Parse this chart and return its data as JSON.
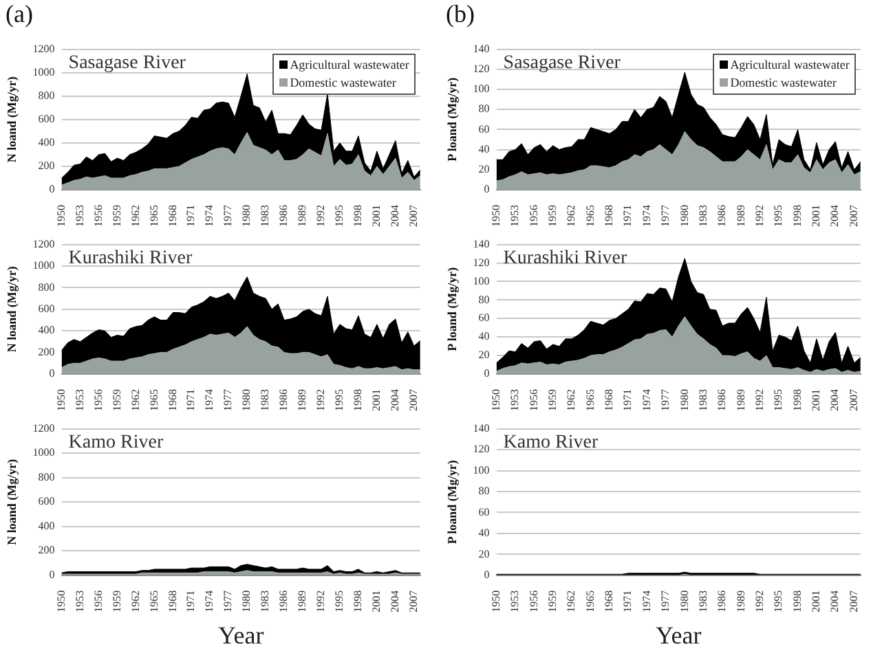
{
  "chart_data": [
    {
      "type": "area",
      "title": "Sasagase River",
      "annotations": [
        "(a)"
      ],
      "ylabel": "N loand (Mg/yr)",
      "stacked": true,
      "ylim": [
        0,
        1200
      ],
      "yticks": [
        0,
        200,
        400,
        600,
        800,
        1000,
        1200
      ],
      "grid": "y",
      "legend": "top right",
      "categories": [
        "1950",
        null,
        null,
        "1953",
        null,
        null,
        "1956",
        null,
        null,
        "1959",
        null,
        null,
        "1962",
        null,
        null,
        "1965",
        null,
        null,
        "1968",
        null,
        null,
        "1971",
        null,
        null,
        "1974",
        null,
        null,
        "1977",
        null,
        null,
        "1980",
        null,
        null,
        "1983",
        null,
        null,
        "1986",
        null,
        null,
        "1989",
        null,
        null,
        "1992",
        null,
        null,
        "1995",
        null,
        null,
        "1998",
        null,
        null,
        "2001",
        null,
        null,
        "2004",
        null,
        null,
        "2007",
        null
      ],
      "series": [
        {
          "name": "Domestic wastewater",
          "color": "#98a29e",
          "values": [
            40,
            60,
            80,
            90,
            110,
            100,
            110,
            120,
            100,
            100,
            100,
            120,
            130,
            150,
            160,
            180,
            180,
            180,
            190,
            200,
            230,
            260,
            280,
            300,
            330,
            350,
            360,
            350,
            300,
            400,
            490,
            380,
            360,
            340,
            300,
            340,
            250,
            250,
            260,
            300,
            350,
            320,
            290,
            480,
            200,
            260,
            210,
            220,
            300,
            160,
            120,
            200,
            130,
            200,
            270,
            100,
            150,
            80,
            120
          ]
        },
        {
          "name": "Agricultural wastewater",
          "color": "#000000",
          "values": [
            60,
            90,
            130,
            130,
            170,
            150,
            190,
            190,
            140,
            170,
            150,
            180,
            190,
            200,
            230,
            280,
            270,
            260,
            290,
            300,
            320,
            360,
            330,
            380,
            360,
            390,
            390,
            390,
            320,
            400,
            500,
            340,
            340,
            240,
            380,
            140,
            230,
            220,
            290,
            340,
            210,
            200,
            220,
            340,
            130,
            140,
            120,
            110,
            160,
            70,
            40,
            130,
            50,
            100,
            150,
            40,
            100,
            30,
            50
          ]
        }
      ]
    },
    {
      "type": "area",
      "title": "Sasagase River",
      "annotations": [
        "(b)"
      ],
      "ylabel": "P loand (Mg/yr)",
      "stacked": true,
      "ylim": [
        0,
        140
      ],
      "yticks": [
        0,
        20,
        40,
        60,
        80,
        100,
        120,
        140
      ],
      "grid": "y",
      "legend": "top right",
      "categories": [
        "1950",
        null,
        null,
        "1953",
        null,
        null,
        "1956",
        null,
        null,
        "1959",
        null,
        null,
        "1962",
        null,
        null,
        "1965",
        null,
        null,
        "1968",
        null,
        null,
        "1971",
        null,
        null,
        "1974",
        null,
        null,
        "1977",
        null,
        null,
        "1980",
        null,
        null,
        "1983",
        null,
        null,
        "1986",
        null,
        null,
        "1989",
        null,
        null,
        "1992",
        null,
        null,
        "1995",
        null,
        null,
        "1998",
        null,
        null,
        "2001",
        null,
        null,
        "2004",
        null,
        null,
        "2007",
        null
      ],
      "series": [
        {
          "name": "Domestic wastewater",
          "color": "#98a29e",
          "values": [
            9,
            10,
            13,
            15,
            18,
            15,
            16,
            17,
            15,
            16,
            15,
            16,
            17,
            19,
            20,
            24,
            24,
            23,
            22,
            24,
            28,
            30,
            35,
            33,
            38,
            40,
            45,
            40,
            35,
            45,
            58,
            50,
            44,
            42,
            38,
            33,
            28,
            28,
            28,
            33,
            40,
            35,
            30,
            45,
            20,
            30,
            27,
            27,
            35,
            22,
            17,
            30,
            20,
            27,
            30,
            17,
            25,
            15,
            18
          ]
        },
        {
          "name": "Agricultural wastewater",
          "color": "#000000",
          "values": [
            21,
            20,
            25,
            25,
            28,
            20,
            26,
            28,
            23,
            28,
            25,
            26,
            26,
            31,
            30,
            38,
            36,
            35,
            34,
            36,
            40,
            38,
            45,
            39,
            42,
            42,
            48,
            48,
            37,
            50,
            59,
            45,
            41,
            40,
            34,
            32,
            27,
            25,
            24,
            29,
            33,
            30,
            20,
            30,
            5,
            20,
            18,
            16,
            25,
            8,
            3,
            17,
            5,
            13,
            18,
            5,
            13,
            5,
            10
          ]
        }
      ]
    },
    {
      "type": "area",
      "title": "Kurashiki River",
      "ylabel": "N loand (Mg/yr)",
      "stacked": true,
      "ylim": [
        0,
        1200
      ],
      "yticks": [
        0,
        200,
        400,
        600,
        800,
        1000,
        1200
      ],
      "grid": "y",
      "categories": [
        "1950",
        null,
        null,
        "1953",
        null,
        null,
        "1956",
        null,
        null,
        "1959",
        null,
        null,
        "1962",
        null,
        null,
        "1965",
        null,
        null,
        "1968",
        null,
        null,
        "1971",
        null,
        null,
        "1974",
        null,
        null,
        "1977",
        null,
        null,
        "1980",
        null,
        null,
        "1983",
        null,
        null,
        "1986",
        null,
        null,
        "1989",
        null,
        null,
        "1992",
        null,
        null,
        "1995",
        null,
        null,
        "1998",
        null,
        null,
        "2001",
        null,
        null,
        "2004",
        null,
        null,
        "2007",
        null
      ],
      "series": [
        {
          "color": "#98a29e",
          "values": [
            60,
            90,
            100,
            100,
            120,
            140,
            150,
            140,
            120,
            120,
            120,
            140,
            150,
            160,
            180,
            190,
            200,
            200,
            230,
            250,
            270,
            300,
            320,
            340,
            370,
            360,
            370,
            380,
            340,
            380,
            440,
            360,
            320,
            300,
            260,
            250,
            200,
            190,
            190,
            200,
            200,
            180,
            160,
            180,
            90,
            80,
            60,
            50,
            70,
            50,
            50,
            60,
            50,
            60,
            70,
            40,
            50,
            40,
            40
          ]
        },
        {
          "color": "#000000",
          "values": [
            160,
            200,
            220,
            200,
            220,
            240,
            260,
            260,
            220,
            240,
            230,
            280,
            290,
            290,
            320,
            340,
            300,
            300,
            340,
            320,
            290,
            320,
            320,
            330,
            350,
            340,
            350,
            370,
            340,
            420,
            460,
            390,
            400,
            400,
            340,
            400,
            300,
            320,
            340,
            380,
            400,
            380,
            380,
            540,
            280,
            380,
            360,
            360,
            470,
            320,
            290,
            400,
            280,
            400,
            440,
            250,
            340,
            220,
            270
          ]
        }
      ]
    },
    {
      "type": "area",
      "title": "Kurashiki River",
      "ylabel": "P loand (Mg/yr)",
      "stacked": true,
      "ylim": [
        0,
        140
      ],
      "yticks": [
        0,
        20,
        40,
        60,
        80,
        100,
        120,
        140
      ],
      "grid": "y",
      "categories": [
        "1950",
        null,
        null,
        "1953",
        null,
        null,
        "1956",
        null,
        null,
        "1959",
        null,
        null,
        "1962",
        null,
        null,
        "1965",
        null,
        null,
        "1968",
        null,
        null,
        "1971",
        null,
        null,
        "1974",
        null,
        null,
        "1977",
        null,
        null,
        "1980",
        null,
        null,
        "1983",
        null,
        null,
        "1986",
        null,
        null,
        "1989",
        null,
        null,
        "1992",
        null,
        null,
        "1995",
        null,
        null,
        "1998",
        null,
        null,
        "2001",
        null,
        null,
        "2004",
        null,
        null,
        "2007",
        null
      ],
      "series": [
        {
          "color": "#98a29e",
          "values": [
            3,
            6,
            8,
            9,
            12,
            11,
            12,
            13,
            10,
            11,
            10,
            13,
            14,
            15,
            17,
            20,
            21,
            21,
            24,
            26,
            29,
            33,
            37,
            38,
            43,
            44,
            47,
            48,
            40,
            52,
            62,
            52,
            43,
            38,
            32,
            28,
            20,
            20,
            19,
            22,
            24,
            17,
            14,
            20,
            7,
            7,
            6,
            5,
            7,
            4,
            2,
            5,
            3,
            5,
            6,
            2,
            4,
            2,
            3
          ]
        },
        {
          "color": "#000000",
          "values": [
            9,
            12,
            17,
            15,
            21,
            17,
            23,
            23,
            17,
            21,
            20,
            25,
            24,
            27,
            31,
            37,
            34,
            32,
            34,
            34,
            36,
            37,
            42,
            40,
            44,
            42,
            46,
            44,
            38,
            53,
            63,
            48,
            45,
            48,
            38,
            41,
            32,
            35,
            36,
            43,
            48,
            43,
            31,
            63,
            18,
            35,
            34,
            31,
            45,
            21,
            10,
            33,
            12,
            30,
            39,
            10,
            26,
            10,
            15
          ]
        }
      ]
    },
    {
      "type": "area",
      "title": "Kamo River",
      "xlabel": "Year",
      "ylabel": "N loand (Mg/yr)",
      "stacked": true,
      "ylim": [
        0,
        1200
      ],
      "yticks": [
        0,
        200,
        400,
        600,
        800,
        1000,
        1200
      ],
      "grid": "y",
      "categories": [
        "1950",
        null,
        null,
        "1953",
        null,
        null,
        "1956",
        null,
        null,
        "1959",
        null,
        null,
        "1962",
        null,
        null,
        "1965",
        null,
        null,
        "1968",
        null,
        null,
        "1971",
        null,
        null,
        "1974",
        null,
        null,
        "1977",
        null,
        null,
        "1980",
        null,
        null,
        "1983",
        null,
        null,
        "1986",
        null,
        null,
        "1989",
        null,
        null,
        "1992",
        null,
        null,
        "1995",
        null,
        null,
        "1998",
        null,
        null,
        "2001",
        null,
        null,
        "2004",
        null,
        null,
        "2007",
        null
      ],
      "series": [
        {
          "color": "#98a29e",
          "values": [
            10,
            10,
            10,
            10,
            10,
            10,
            10,
            10,
            10,
            10,
            10,
            10,
            10,
            20,
            20,
            20,
            20,
            20,
            20,
            20,
            20,
            20,
            20,
            30,
            30,
            30,
            30,
            30,
            20,
            30,
            40,
            30,
            30,
            30,
            30,
            20,
            20,
            20,
            20,
            20,
            20,
            20,
            20,
            30,
            10,
            20,
            10,
            10,
            20,
            10,
            10,
            10,
            10,
            10,
            20,
            10,
            10,
            10,
            10
          ]
        },
        {
          "color": "#000000",
          "values": [
            10,
            20,
            20,
            20,
            20,
            20,
            20,
            20,
            20,
            20,
            20,
            20,
            20,
            20,
            20,
            30,
            30,
            30,
            30,
            30,
            30,
            40,
            40,
            30,
            40,
            40,
            40,
            40,
            30,
            50,
            50,
            50,
            40,
            30,
            40,
            30,
            30,
            30,
            30,
            40,
            30,
            30,
            30,
            50,
            20,
            20,
            20,
            20,
            30,
            10,
            10,
            20,
            10,
            20,
            20,
            10,
            10,
            10,
            10
          ]
        }
      ]
    },
    {
      "type": "area",
      "title": "Kamo River",
      "xlabel": "Year",
      "ylabel": "P loand (Mg/yr)",
      "stacked": true,
      "ylim": [
        0,
        140
      ],
      "yticks": [
        0,
        20,
        40,
        60,
        80,
        100,
        120,
        140
      ],
      "grid": "y",
      "categories": [
        "1950",
        null,
        null,
        "1953",
        null,
        null,
        "1956",
        null,
        null,
        "1959",
        null,
        null,
        "1962",
        null,
        null,
        "1965",
        null,
        null,
        "1968",
        null,
        null,
        "1971",
        null,
        null,
        "1974",
        null,
        null,
        "1977",
        null,
        null,
        "1980",
        null,
        null,
        "1983",
        null,
        null,
        "1986",
        null,
        null,
        "1989",
        null,
        null,
        "1992",
        null,
        null,
        "1995",
        null,
        null,
        "1998",
        null,
        null,
        "2001",
        null,
        null,
        "2004",
        null,
        null,
        "2007",
        null
      ],
      "series": [
        {
          "color": "#98a29e",
          "values": [
            0,
            0,
            0,
            0,
            0,
            0,
            0,
            0,
            0,
            0,
            0,
            0,
            0,
            0,
            0,
            0,
            0,
            0,
            0,
            0,
            0,
            0,
            0,
            0,
            0,
            0,
            0,
            0,
            0,
            0,
            1,
            0,
            0,
            0,
            0,
            0,
            0,
            0,
            0,
            0,
            0,
            0,
            0,
            0,
            0,
            0,
            0,
            0,
            0,
            0,
            0,
            0,
            0,
            0,
            0,
            0,
            0,
            0,
            0
          ]
        },
        {
          "color": "#000000",
          "values": [
            1,
            1,
            1,
            1,
            1,
            1,
            1,
            1,
            1,
            1,
            1,
            1,
            1,
            1,
            1,
            1,
            1,
            1,
            1,
            1,
            1,
            2,
            2,
            2,
            2,
            2,
            2,
            2,
            2,
            2,
            2,
            2,
            2,
            2,
            2,
            2,
            2,
            2,
            2,
            2,
            2,
            2,
            1,
            1,
            1,
            1,
            1,
            1,
            1,
            1,
            1,
            1,
            1,
            1,
            1,
            1,
            1,
            1,
            1
          ]
        }
      ]
    }
  ]
}
